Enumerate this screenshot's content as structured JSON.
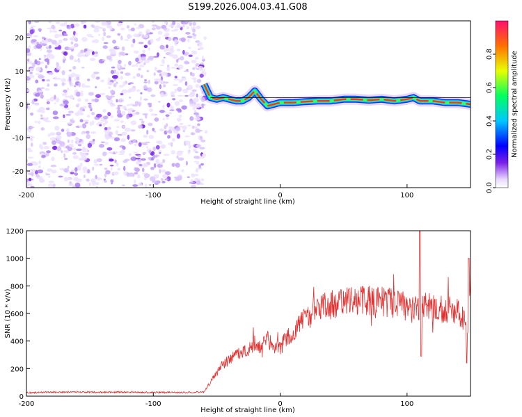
{
  "title": "S199.2026.004.03.41.G08",
  "colors": {
    "trace": "#e03030",
    "ridge_low": "#00c0ff",
    "ridge_high": "#ff3030",
    "noise": "#8a3ff0"
  },
  "chart_data": [
    {
      "type": "heatmap",
      "title": "S199.2026.004.03.41.G08",
      "xlabel": "Height of straight line (km)",
      "ylabel": "Frequency (Hz)",
      "xlim": [
        -200,
        150
      ],
      "ylim": [
        -25,
        25
      ],
      "xticks": [
        -200,
        -100,
        0,
        100
      ],
      "yticks": [
        20,
        10,
        0,
        -10,
        -20
      ],
      "noise_region_x": [
        -200,
        -60
      ],
      "ridge": {
        "x": [
          -60,
          -55,
          -50,
          -45,
          -40,
          -35,
          -30,
          -25,
          -20,
          -15,
          -10,
          -5,
          0,
          10,
          20,
          30,
          40,
          50,
          60,
          70,
          80,
          90,
          100,
          105,
          110,
          120,
          130,
          140,
          150
        ],
        "y": [
          6,
          2,
          1.5,
          2,
          1.5,
          1,
          1,
          2,
          4,
          1.5,
          -0.5,
          0,
          0.5,
          0.5,
          0.8,
          1,
          1,
          1.5,
          1.5,
          1.2,
          1.5,
          1,
          1.5,
          2,
          1,
          1,
          0.5,
          0.5,
          0
        ]
      },
      "colorbar": {
        "label": "Normalized spectral amplitude",
        "ticks": [
          "0.0",
          "0.2",
          "0.4",
          "0.6",
          "0.8"
        ]
      }
    },
    {
      "type": "line",
      "xlabel": "Height of straight line (km)",
      "ylabel": "SNR (10 * v/v)",
      "xlim": [
        -200,
        150
      ],
      "ylim": [
        0,
        1200
      ],
      "xticks": [
        -200,
        -100,
        0,
        100
      ],
      "yticks": [
        0,
        200,
        400,
        600,
        800,
        1000,
        1200
      ],
      "series": [
        {
          "name": "SNR",
          "x": [
            -200,
            -180,
            -160,
            -140,
            -120,
            -100,
            -80,
            -60,
            -50,
            -45,
            -40,
            -35,
            -30,
            -25,
            -20,
            -15,
            -10,
            -5,
            0,
            5,
            10,
            15,
            20,
            25,
            30,
            35,
            40,
            45,
            50,
            55,
            60,
            65,
            70,
            75,
            80,
            85,
            90,
            95,
            100,
            105,
            110,
            115,
            120,
            125,
            130,
            135,
            140,
            145,
            148,
            150
          ],
          "y": [
            25,
            28,
            30,
            28,
            30,
            27,
            26,
            30,
            170,
            230,
            260,
            300,
            330,
            350,
            380,
            350,
            420,
            360,
            350,
            420,
            470,
            520,
            560,
            600,
            640,
            660,
            660,
            680,
            680,
            690,
            700,
            700,
            690,
            680,
            690,
            680,
            670,
            660,
            650,
            660,
            640,
            650,
            640,
            640,
            620,
            640,
            610,
            560,
            400,
            800
          ]
        }
      ]
    }
  ]
}
